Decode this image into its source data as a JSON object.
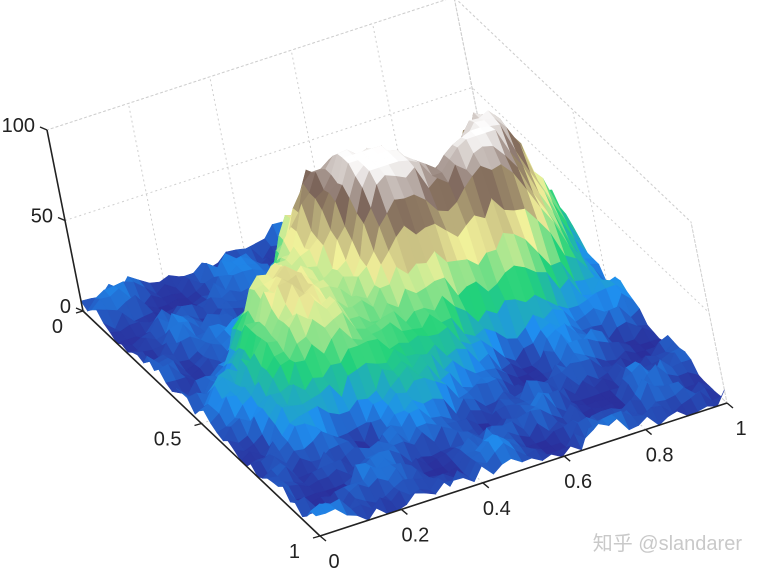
{
  "chart_data": {
    "type": "surface3d",
    "title": "",
    "xlabel": "",
    "ylabel": "",
    "zlabel": "",
    "x_ticks": [
      "0",
      "0.2",
      "0.4",
      "0.6",
      "0.8",
      "1"
    ],
    "y_ticks": [
      "0",
      "0.5",
      "1"
    ],
    "z_ticks": [
      "0",
      "50",
      "100"
    ],
    "xlim": [
      0,
      1
    ],
    "ylim": [
      0,
      1
    ],
    "zlim": [
      0,
      100
    ],
    "grid": true,
    "colormap": "terrain",
    "colormap_stops": [
      "#2a2f9c",
      "#1f8ff0",
      "#22d27a",
      "#f2f19a",
      "#7b6358",
      "#ffffff"
    ],
    "grid_resolution": 42,
    "surface": {
      "description": "fractal terrain heightmap",
      "peaks": [
        {
          "x": 0.48,
          "y": 0.3,
          "height": 72
        },
        {
          "x": 0.58,
          "y": 0.45,
          "height": 92
        },
        {
          "x": 0.8,
          "y": 0.45,
          "height": 85
        },
        {
          "x": 0.88,
          "y": 0.3,
          "height": 62
        },
        {
          "x": 0.3,
          "y": 0.42,
          "height": 40
        },
        {
          "x": 0.22,
          "y": 0.55,
          "height": 38
        },
        {
          "x": 0.42,
          "y": 0.62,
          "height": 32
        }
      ],
      "z_range": [
        0,
        95
      ]
    }
  },
  "watermark": {
    "text": "知乎 @slandarer"
  }
}
